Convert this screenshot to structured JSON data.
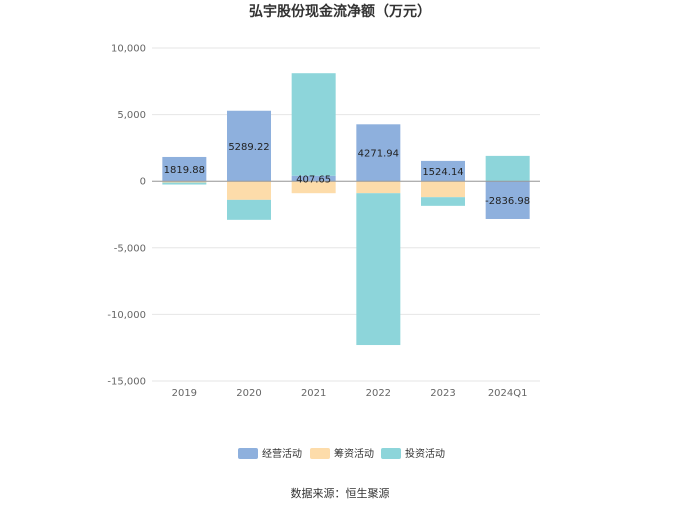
{
  "chart_data": {
    "type": "bar",
    "stacked": true,
    "title": "弘宇股份现金流净额（万元）",
    "categories": [
      "2019",
      "2020",
      "2021",
      "2022",
      "2023",
      "2024Q1"
    ],
    "ylim": [
      -15000,
      10000
    ],
    "yticks": [
      10000,
      5000,
      0,
      -5000,
      -10000,
      -15000
    ],
    "ytick_labels": [
      "10,000",
      "5,000",
      "0",
      "-5,000",
      "-10,000",
      "-15,000"
    ],
    "grid": true,
    "legend_position": "bottom",
    "series": [
      {
        "name": "经营活动",
        "color": "#8eb0dd",
        "values": [
          1819.88,
          5289.22,
          407.65,
          4271.94,
          1524.14,
          -2836.98
        ]
      },
      {
        "name": "筹资活动",
        "color": "#fddcaa",
        "values": [
          -100,
          -1400,
          -900,
          -900,
          -1200,
          0
        ]
      },
      {
        "name": "投资活动",
        "color": "#8dd5da",
        "values": [
          -150,
          -1500,
          7700,
          -11400,
          -650,
          1900
        ]
      }
    ],
    "data_labels": [
      "1819.88",
      "5289.22",
      "407.65",
      "4271.94",
      "1524.14",
      "-2836.98"
    ],
    "source": "数据来源：恒生聚源"
  }
}
